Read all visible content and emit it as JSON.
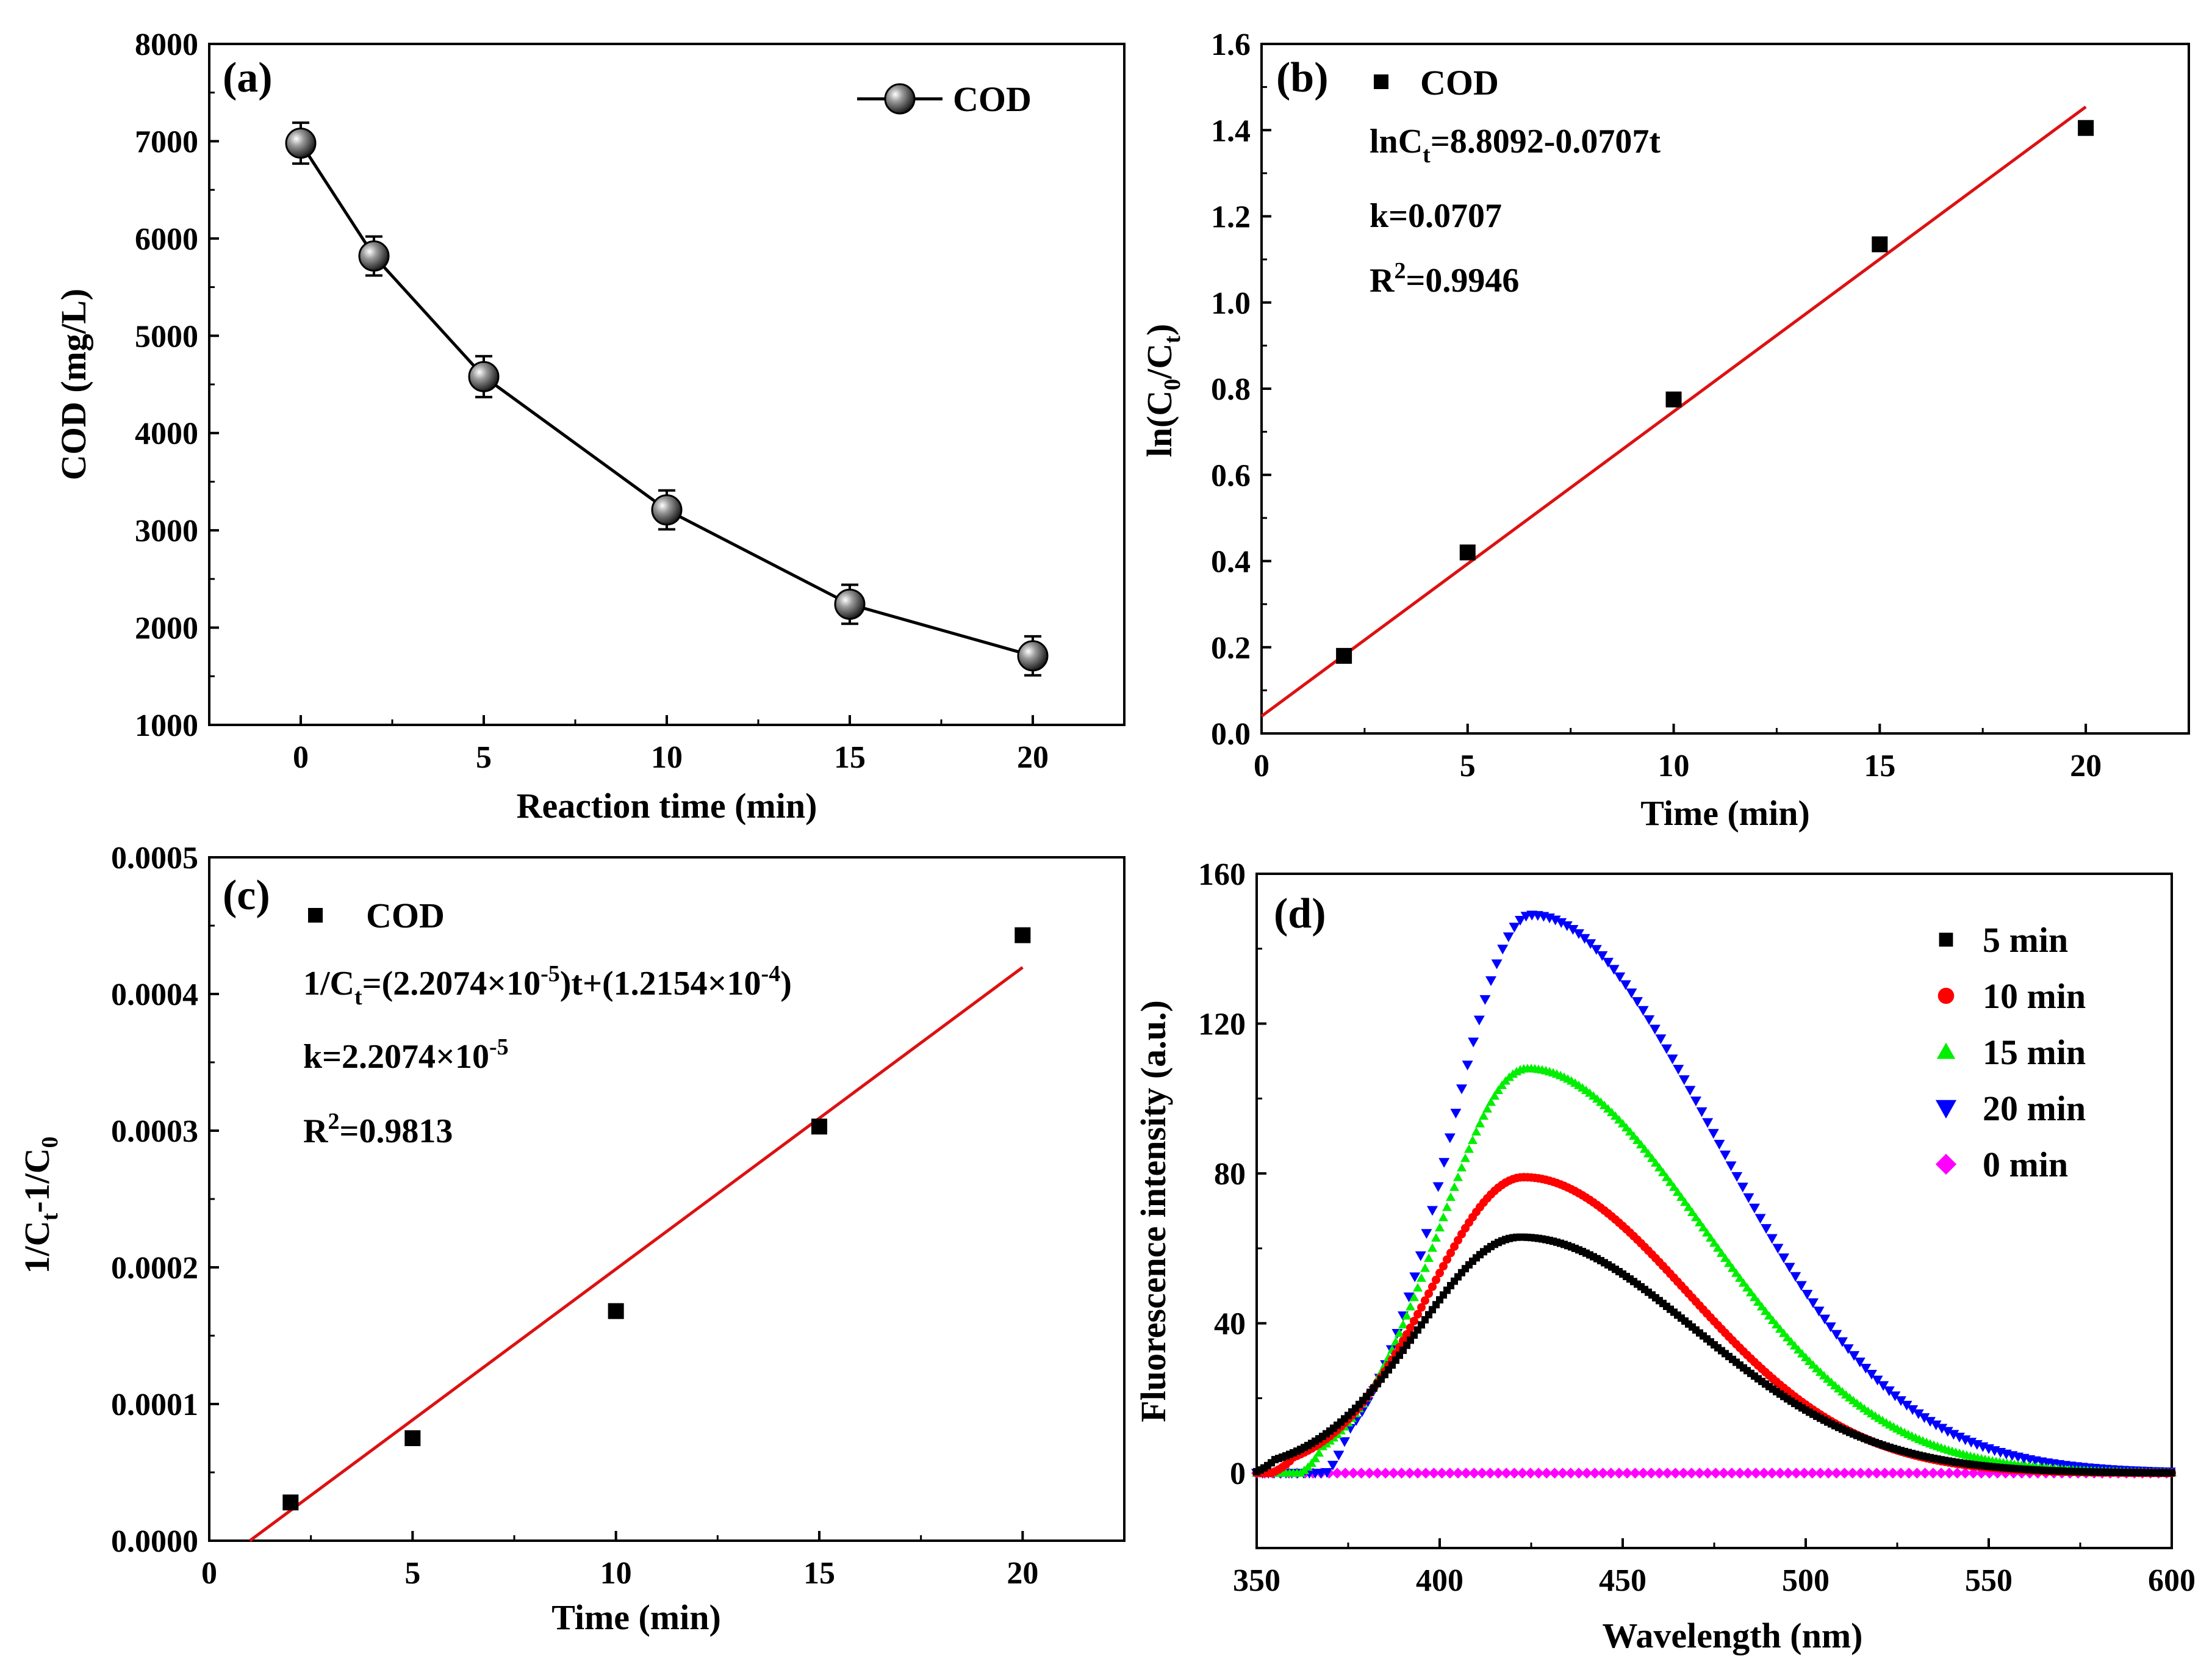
{
  "chart_data": [
    {
      "panel": "(a)",
      "type": "line",
      "xlabel": "Reaction time (min)",
      "ylabel": "COD (mg/L)",
      "xlim": [
        -2.5,
        22.5
      ],
      "ylim": [
        1000,
        8000
      ],
      "xticks": [
        0,
        5,
        10,
        15,
        20
      ],
      "yticks": [
        1000,
        2000,
        3000,
        4000,
        5000,
        6000,
        7000,
        8000
      ],
      "legend": "top-right",
      "series": [
        {
          "name": "COD",
          "color": "#000000",
          "x": [
            0,
            2,
            5,
            10,
            15,
            20
          ],
          "y": [
            6980,
            5820,
            4580,
            3210,
            2240,
            1710
          ],
          "yerr": [
            210,
            200,
            210,
            200,
            200,
            200
          ]
        }
      ]
    },
    {
      "panel": "(b)",
      "type": "scatter",
      "xlabel": "Time (min)",
      "ylabel": "ln(C0/Ct)",
      "xlim": [
        0,
        22.5
      ],
      "ylim": [
        0,
        1.6
      ],
      "xticks": [
        0,
        5,
        10,
        15,
        20
      ],
      "yticks": [
        0.0,
        0.2,
        0.4,
        0.6,
        0.8,
        1.0,
        1.2,
        1.4,
        1.6
      ],
      "series": [
        {
          "name": "COD",
          "color": "#000000",
          "x": [
            2,
            5,
            10,
            15,
            20
          ],
          "y": [
            0.18,
            0.42,
            0.775,
            1.135,
            1.405
          ]
        }
      ],
      "fit": {
        "color": "#dd1111",
        "slope": 0.0707,
        "intercept": 0.04,
        "x_range": [
          0,
          20
        ]
      },
      "annotations": {
        "legend": "COD",
        "eq_a": "lnC",
        "eq_sub": "t",
        "eq_b": "=8.8092-0.0707t",
        "k": "k=0.0707",
        "r2_a": "R",
        "r2_sup": "2",
        "r2_b": "=0.9946"
      }
    },
    {
      "panel": "(c)",
      "type": "scatter",
      "xlabel": "Time (min)",
      "ylabel": "1/Ct-1/C0",
      "xlim": [
        0,
        22.5
      ],
      "ylim": [
        0,
        0.0005
      ],
      "xticks": [
        0,
        5,
        10,
        15,
        20
      ],
      "yticks": [
        "0.0000",
        "0.0001",
        "0.0002",
        "0.0003",
        "0.0004",
        "0.0005"
      ],
      "series": [
        {
          "name": "COD",
          "color": "#000000",
          "x": [
            2,
            5,
            10,
            15,
            20
          ],
          "y": [
            2.8e-05,
            7.5e-05,
            0.000168,
            0.000303,
            0.000443
          ]
        }
      ],
      "fit": {
        "color": "#dd1111",
        "slope": 2.2074e-05,
        "intercept": -2.2e-05,
        "x_range": [
          1,
          20
        ]
      },
      "annotations": {
        "legend": "COD",
        "eq_1": "1/C",
        "eq_sub": "t",
        "eq_2": "=(2.2074×10",
        "eq_sup1": "-5",
        "eq_3": ")t+(1.2154×10",
        "eq_sup2": "-4",
        "eq_4": ")",
        "k_1": "k=2.2074×10",
        "k_sup": "-5",
        "r2_a": "R",
        "r2_sup": "2",
        "r2_b": "=0.9813"
      }
    },
    {
      "panel": "(d)",
      "type": "scatter",
      "xlabel": "Wavelength (nm)",
      "ylabel": "Fluorescence intensity (a.u.)",
      "xlim": [
        350,
        600
      ],
      "ylim": [
        -20,
        160
      ],
      "xticks": [
        350,
        400,
        450,
        500,
        550,
        600
      ],
      "yticks": [
        0,
        40,
        80,
        120,
        160
      ],
      "legend": "top-right",
      "series": [
        {
          "name": "5 min",
          "color": "#000000",
          "marker": "square",
          "peak_nm": 422,
          "peak_height": 63,
          "onset_nm": 355,
          "width_left": 28,
          "width_right": 48
        },
        {
          "name": "10 min",
          "color": "#ff0000",
          "marker": "circle",
          "peak_nm": 423,
          "peak_height": 79,
          "onset_nm": 360,
          "width_left": 26,
          "width_right": 45
        },
        {
          "name": "15 min",
          "color": "#00ee00",
          "marker": "triangle-up",
          "peak_nm": 424,
          "peak_height": 108,
          "onset_nm": 368,
          "width_left": 24,
          "width_right": 48
        },
        {
          "name": "20 min",
          "color": "#0000ff",
          "marker": "triangle-down",
          "peak_nm": 425,
          "peak_height": 149,
          "onset_nm": 375,
          "width_left": 22,
          "width_right": 50
        },
        {
          "name": "0 min",
          "color": "#ff00ff",
          "marker": "diamond",
          "peak_nm": 0,
          "peak_height": 0,
          "onset_nm": 350,
          "width_left": 1,
          "width_right": 1
        }
      ]
    }
  ]
}
